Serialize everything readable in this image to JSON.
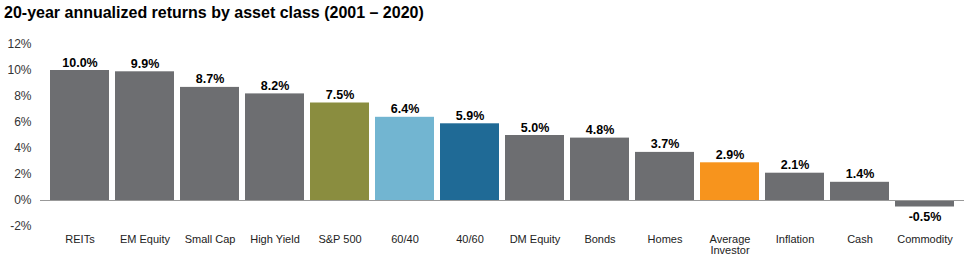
{
  "chart_data": {
    "type": "bar",
    "title": "20-year annualized returns by asset class (2001 – 2020)",
    "categories": [
      "REITs",
      "EM Equity",
      "Small Cap",
      "High Yield",
      "S&P 500",
      "60/40",
      "40/60",
      "DM Equity",
      "Bonds",
      "Homes",
      "Average Investor",
      "Inflation",
      "Cash",
      "Commodity"
    ],
    "values": [
      10.0,
      9.9,
      8.7,
      8.2,
      7.5,
      6.4,
      5.9,
      5.0,
      4.8,
      3.7,
      2.9,
      2.1,
      1.4,
      -0.5
    ],
    "value_labels": [
      "10.0%",
      "9.9%",
      "8.7%",
      "8.2%",
      "7.5%",
      "6.4%",
      "5.9%",
      "5.0%",
      "4.8%",
      "3.7%",
      "2.9%",
      "2.1%",
      "1.4%",
      "-0.5%"
    ],
    "colors": [
      "#6d6e71",
      "#6d6e71",
      "#6d6e71",
      "#6d6e71",
      "#8a8d3f",
      "#72b5d1",
      "#1f6a96",
      "#6d6e71",
      "#6d6e71",
      "#6d6e71",
      "#f7941d",
      "#6d6e71",
      "#6d6e71",
      "#6d6e71"
    ],
    "ylim": [
      -2,
      12
    ],
    "yticks": [
      {
        "value": -2,
        "label": "-2%"
      },
      {
        "value": 0,
        "label": "0%"
      },
      {
        "value": 2,
        "label": "2%"
      },
      {
        "value": 4,
        "label": "4%"
      },
      {
        "value": 6,
        "label": "6%"
      },
      {
        "value": 8,
        "label": "8%"
      },
      {
        "value": 10,
        "label": "10%"
      },
      {
        "value": 12,
        "label": "12%"
      }
    ],
    "grid": false,
    "data_labels": true
  }
}
